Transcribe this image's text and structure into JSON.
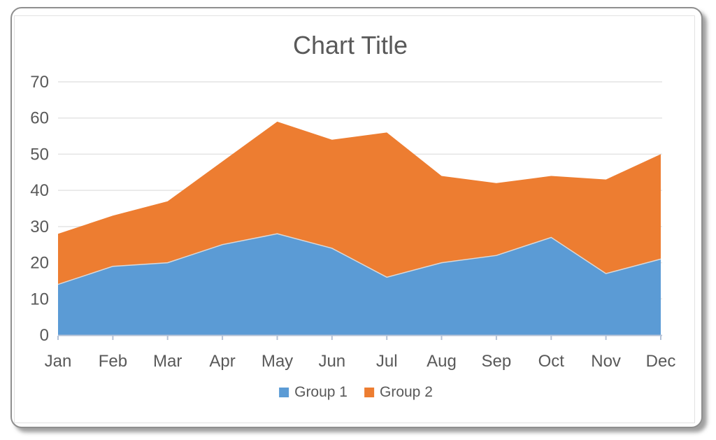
{
  "chart_data": {
    "type": "area",
    "stacked": true,
    "title": "Chart Title",
    "categories": [
      "Jan",
      "Feb",
      "Mar",
      "Apr",
      "May",
      "Jun",
      "Jul",
      "Aug",
      "Sep",
      "Oct",
      "Nov",
      "Dec"
    ],
    "series": [
      {
        "name": "Group 1",
        "color": "#5B9BD5",
        "values": [
          14,
          19,
          20,
          25,
          28,
          24,
          16,
          20,
          22,
          27,
          17,
          21
        ]
      },
      {
        "name": "Group 2",
        "color": "#ED7D31",
        "values": [
          14,
          14,
          17,
          23,
          31,
          30,
          40,
          24,
          20,
          17,
          26,
          29
        ]
      }
    ],
    "stacked_totals": [
      28,
      33,
      37,
      48,
      59,
      54,
      56,
      44,
      42,
      44,
      43,
      50
    ],
    "ylim": [
      0,
      70
    ],
    "yticks": [
      0,
      10,
      20,
      30,
      40,
      50,
      60,
      70
    ],
    "grid": "horizontal",
    "legend_position": "bottom",
    "title_color": "#595959",
    "label_color": "#595959",
    "axis_color": "#b5c2d6",
    "gridline_color": "#e4e4e4",
    "series_boundary_color": "#d9d9d9"
  }
}
